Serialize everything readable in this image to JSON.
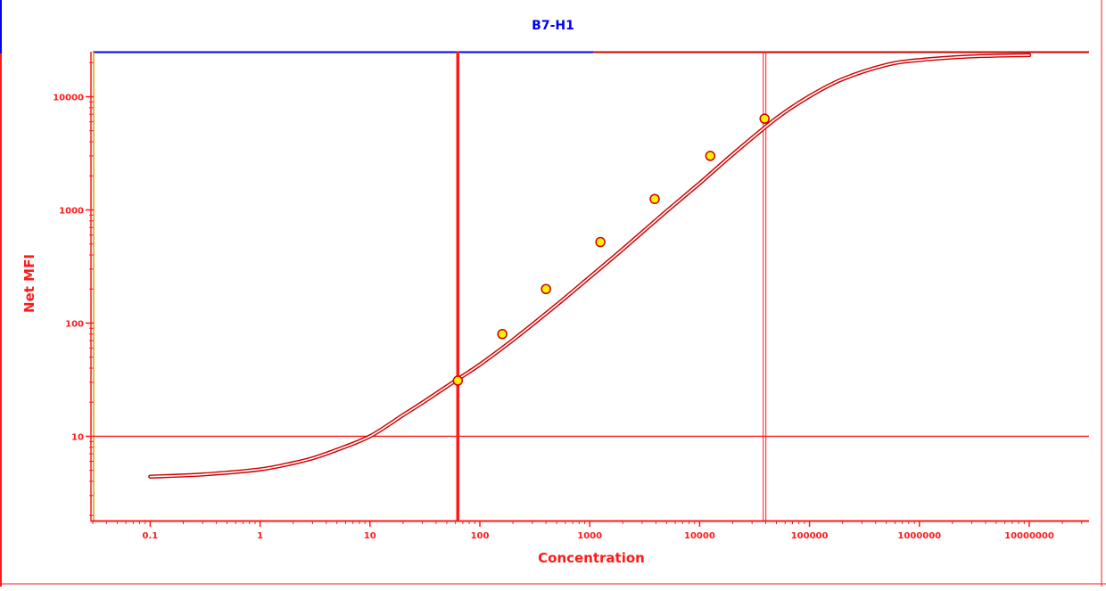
{
  "chart_data": {
    "type": "scatter",
    "title": "B7-H1",
    "xlabel": "Concentration",
    "ylabel": "Net MFI",
    "x_scale": "log",
    "y_scale": "log",
    "xlim": [
      0.03,
      35000000
    ],
    "ylim": [
      1.8,
      25000
    ],
    "x_ticks": [
      {
        "value": 0.1,
        "label": "0.1"
      },
      {
        "value": 1,
        "label": "1"
      },
      {
        "value": 10,
        "label": "10"
      },
      {
        "value": 100,
        "label": "100"
      },
      {
        "value": 1000,
        "label": "1000"
      },
      {
        "value": 10000,
        "label": "10000"
      },
      {
        "value": 100000,
        "label": "100000"
      },
      {
        "value": 1000000,
        "label": "1000000"
      },
      {
        "value": 10000000,
        "label": "10000000"
      }
    ],
    "y_ticks": [
      {
        "value": 10,
        "label": "10"
      },
      {
        "value": 100,
        "label": "100"
      },
      {
        "value": 1000,
        "label": "1000"
      },
      {
        "value": 10000,
        "label": "10000"
      }
    ],
    "series": [
      {
        "type": "curve",
        "color": "#cc0000",
        "x": [
          0.1,
          0.3,
          1,
          2,
          3,
          5,
          10,
          20,
          30,
          60,
          100,
          200,
          500,
          1000,
          2000,
          5000,
          10000,
          20000,
          50000,
          100000,
          200000,
          500000,
          1000000,
          3000000,
          10000000
        ],
        "y": [
          4.4,
          4.6,
          5.1,
          5.8,
          6.4,
          7.6,
          10,
          15.4,
          19.8,
          31,
          43,
          71,
          145,
          255,
          450,
          975,
          1720,
          3100,
          6450,
          10100,
          14300,
          19100,
          21100,
          22700,
          23300
        ]
      },
      {
        "type": "points",
        "color": "#ffee00",
        "x": [
          63,
          160,
          400,
          1250,
          3900,
          12500,
          39000
        ],
        "y": [
          31,
          80,
          200,
          520,
          1250,
          3000,
          6400
        ]
      }
    ],
    "reference_lines": {
      "vertical": [
        63,
        39000
      ],
      "horizontal": [
        10
      ]
    },
    "grid": false,
    "legend": "none",
    "colors": {
      "axis": "#ff1a1a",
      "frame": "#cc0000",
      "accent_top": "#0000ee",
      "marker_fill": "#ffee00",
      "curve": "#cc0000"
    }
  }
}
